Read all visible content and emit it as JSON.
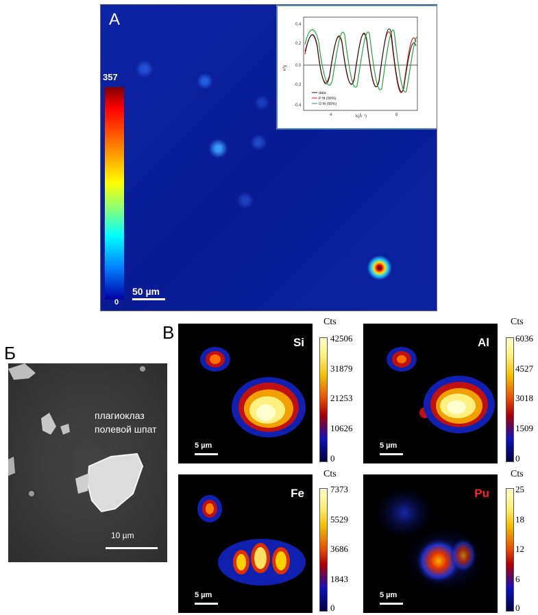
{
  "panel_a": {
    "letter": "A",
    "colorbar_max": "357",
    "colorbar_min": "0",
    "scale_label": "50 µm",
    "inset": {
      "ylabel": "k³χ",
      "xlabel": "k(Å⁻¹)",
      "yticks": [
        "0.4",
        "0.2",
        "0.0",
        "-0.2",
        "-0.4"
      ],
      "xticks": [
        "4",
        "8"
      ],
      "legend": [
        "data",
        "P fit (99%)",
        "O fit (90%)"
      ],
      "colors": {
        "data": "#111111",
        "p_fit": "#e0181f",
        "o_fit": "#22a33a"
      }
    }
  },
  "panel_b": {
    "letter": "Б",
    "mineral_line1": "плагиоклаз",
    "mineral_line2": "полевой шпат",
    "scale_label": "10 µm"
  },
  "panel_c": {
    "letter": "В",
    "maps": [
      {
        "element": "Si",
        "cts_label": "Cts",
        "ticks": [
          "42506",
          "31879",
          "21253",
          "10626",
          "0"
        ],
        "scale_label": "5 µm"
      },
      {
        "element": "Al",
        "cts_label": "Cts",
        "ticks": [
          "6036",
          "4527",
          "3018",
          "1509",
          "0"
        ],
        "scale_label": "5 µm"
      },
      {
        "element": "Fe",
        "cts_label": "Cts",
        "ticks": [
          "7373",
          "5529",
          "3686",
          "1843",
          "0"
        ],
        "scale_label": "5 µm"
      },
      {
        "element": "Pu",
        "cts_label": "Cts",
        "ticks": [
          "25",
          "18",
          "12",
          "6",
          "0"
        ],
        "scale_label": "5 µm"
      }
    ]
  }
}
